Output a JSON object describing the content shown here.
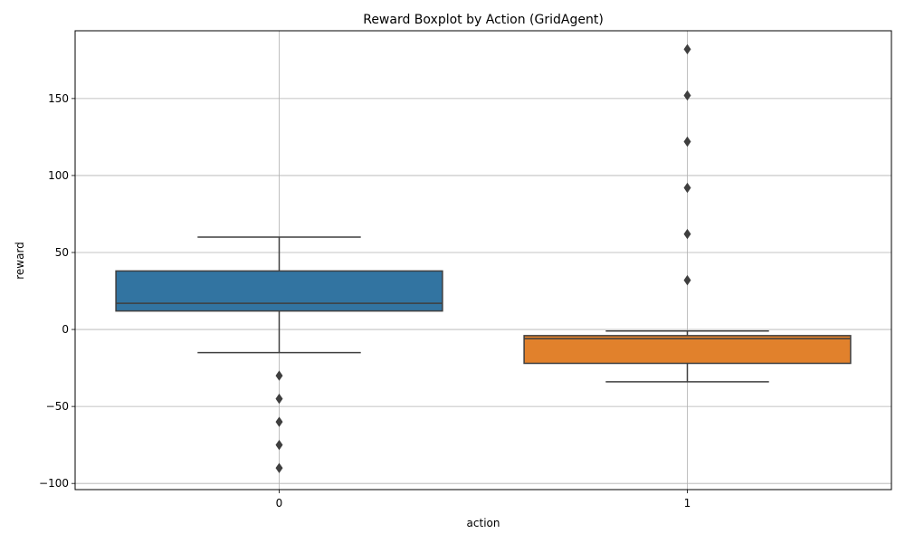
{
  "chart_data": {
    "type": "box",
    "title": "Reward Boxplot by Action (GridAgent)",
    "xlabel": "action",
    "ylabel": "reward",
    "categories": [
      "0",
      "1"
    ],
    "ylim": [
      -104,
      194
    ],
    "yticks": [
      -100,
      -50,
      0,
      50,
      100,
      150
    ],
    "ytick_labels": [
      "−100",
      "−50",
      "0",
      "50",
      "100",
      "150"
    ],
    "grid": true,
    "boxes": [
      {
        "category": "0",
        "color": "#3274a1",
        "q1": 12,
        "median": 17,
        "q3": 38,
        "whisker_low": -15,
        "whisker_high": 60,
        "outliers": [
          -30,
          -45,
          -60,
          -75,
          -90
        ]
      },
      {
        "category": "1",
        "color": "#e1812c",
        "q1": -22,
        "median": -6,
        "q3": -4,
        "whisker_low": -34,
        "whisker_high": -1,
        "outliers": [
          32,
          62,
          92,
          122,
          152,
          182
        ]
      }
    ]
  }
}
